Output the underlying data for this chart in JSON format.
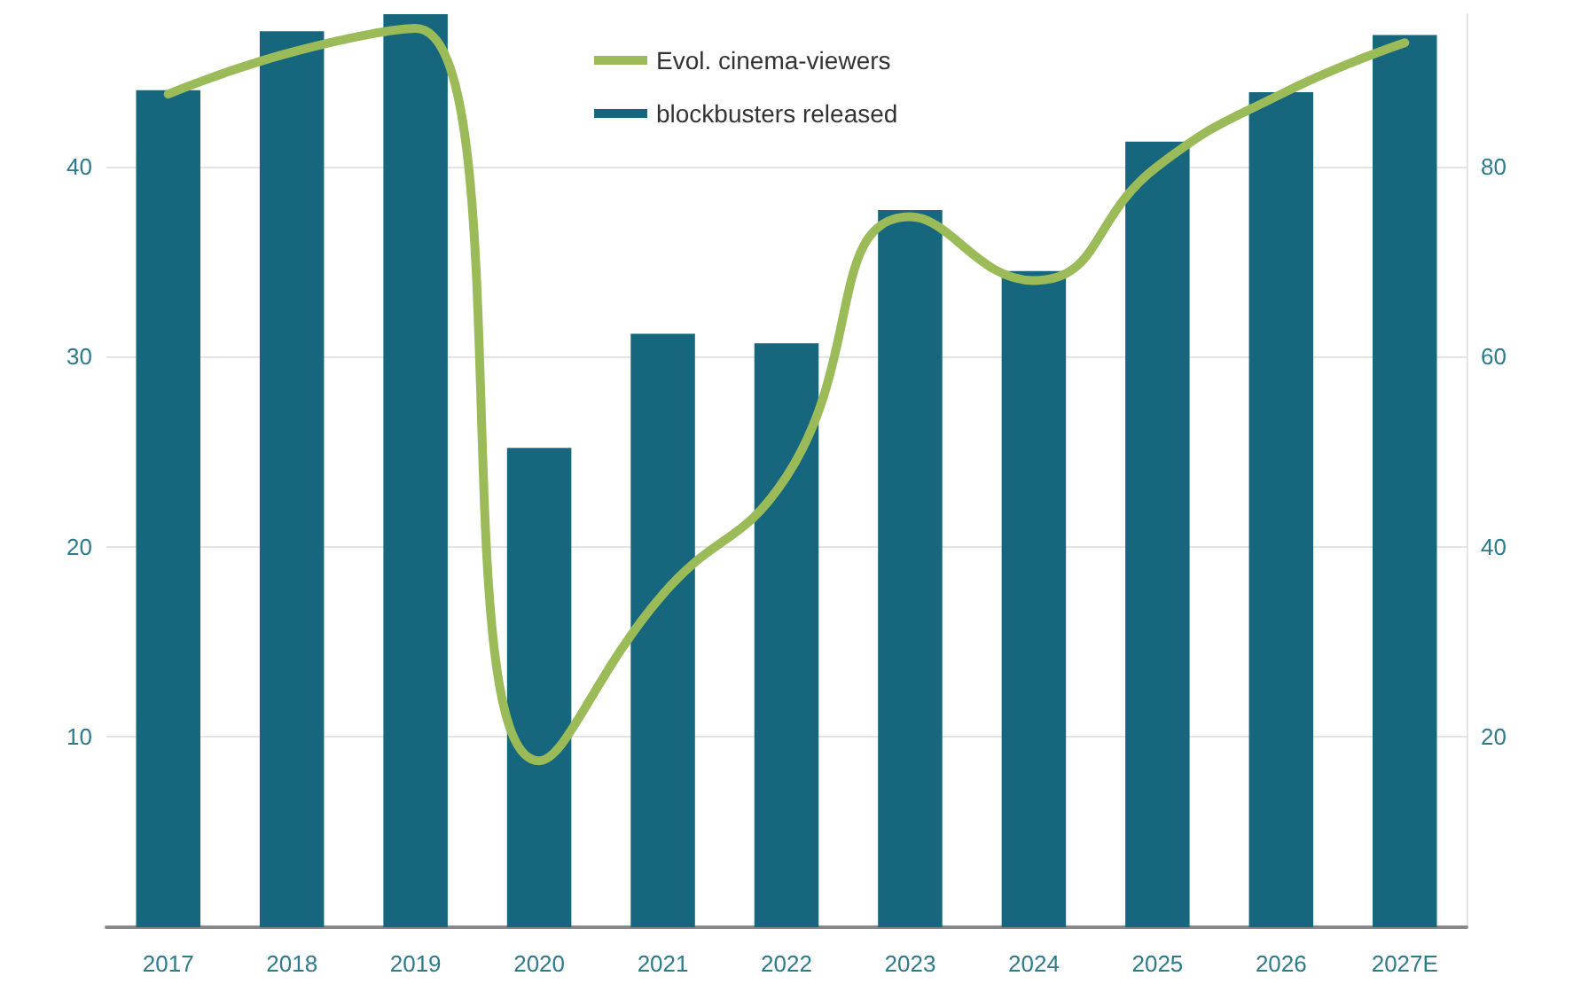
{
  "chart_data": {
    "type": "bar",
    "categories": [
      "2017",
      "2018",
      "2019",
      "2020",
      "2021",
      "2022",
      "2023",
      "2024",
      "2025",
      "2026",
      "2027E"
    ],
    "series": [
      {
        "name": "Evol. cinema-viewers",
        "type": "line",
        "axis": "y2",
        "color": "#9bbb59",
        "values": [
          87.6,
          92,
          94.5,
          17.5,
          35,
          47.4,
          74.7,
          68,
          80,
          87.6,
          93
        ]
      },
      {
        "name": "blockbusters released",
        "type": "bar",
        "color": "#16677e",
        "values": [
          44,
          47.1,
          48,
          25.2,
          31.2,
          30.7,
          37.7,
          34.5,
          41.3,
          43.9,
          46.9
        ]
      }
    ],
    "ylim": [
      0,
      48
    ],
    "yticks": [
      10,
      20,
      30,
      40
    ],
    "y2lim": [
      0,
      96
    ],
    "y2ticks": [
      20,
      40,
      60,
      80
    ],
    "grid": "y",
    "legend": "top",
    "marker": "none",
    "line_style": "solid"
  }
}
